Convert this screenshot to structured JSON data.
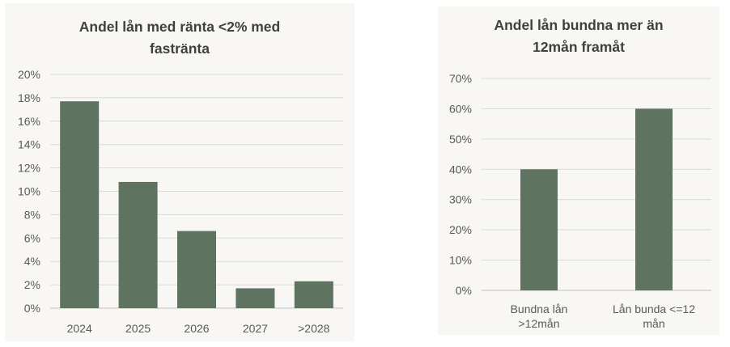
{
  "chart_data": [
    {
      "type": "bar",
      "title_lines": [
        "Andel lån med ränta <2% med",
        "fastränta"
      ],
      "categories": [
        "2024",
        "2025",
        "2026",
        "2027",
        ">2028"
      ],
      "values": [
        17.7,
        10.8,
        6.6,
        1.7,
        2.3
      ],
      "yticks": [
        "0%",
        "2%",
        "4%",
        "6%",
        "8%",
        "10%",
        "12%",
        "14%",
        "16%",
        "18%",
        "20%"
      ],
      "ylim": [
        0,
        20
      ],
      "grid": true,
      "bar_color": "#5e7360"
    },
    {
      "type": "bar",
      "title_lines": [
        "Andel lån bundna mer än",
        "12mån framåt"
      ],
      "categories": [
        [
          "Bundna lån",
          ">12mån"
        ],
        [
          "Lån bunda <=12",
          "mån"
        ]
      ],
      "values": [
        40,
        60
      ],
      "yticks": [
        "0%",
        "10%",
        "20%",
        "30%",
        "40%",
        "50%",
        "60%",
        "70%"
      ],
      "ylim": [
        0,
        70
      ],
      "grid": true,
      "bar_color": "#5e7360"
    }
  ]
}
